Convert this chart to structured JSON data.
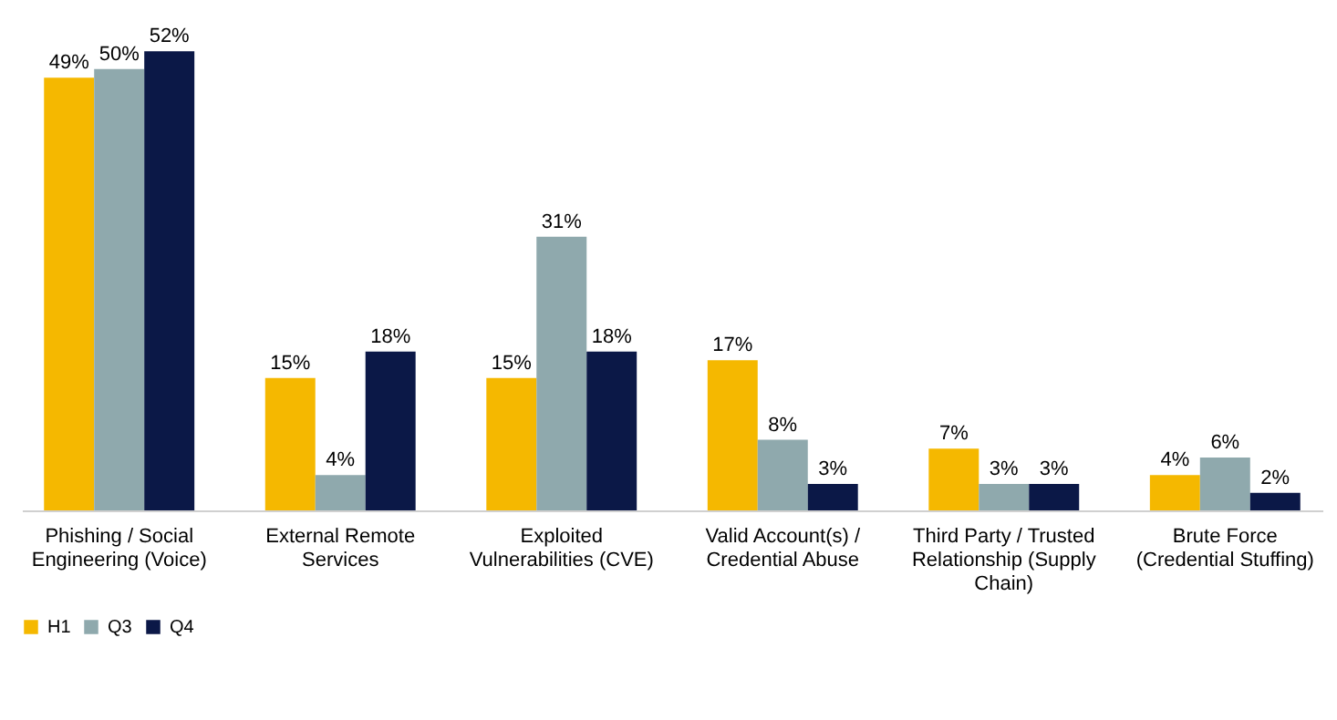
{
  "chart_data": {
    "type": "bar",
    "categories": [
      "Phishing / Social Engineering (Voice)",
      "External Remote Services",
      "Exploited Vulnerabilities (CVE)",
      "Valid Account(s) / Credential Abuse",
      "Third Party / Trusted Relationship (Supply Chain)",
      "Brute Force (Credential Stuffing)"
    ],
    "series": [
      {
        "name": "H1",
        "color": "#f5b800",
        "values": [
          49,
          15,
          15,
          17,
          7,
          4
        ],
        "value_labels": [
          "49%",
          "15%",
          "15%",
          "17%",
          "7%",
          "4%"
        ]
      },
      {
        "name": "Q3",
        "color": "#8fa9ad",
        "values": [
          50,
          4,
          31,
          8,
          3,
          6
        ],
        "value_labels": [
          "50%",
          "4%",
          "31%",
          "8%",
          "3%",
          "6%"
        ]
      },
      {
        "name": "Q4",
        "color": "#0b1847",
        "values": [
          52,
          18,
          18,
          3,
          3,
          2
        ],
        "value_labels": [
          "52%",
          "18%",
          "18%",
          "3%",
          "3%",
          "2%"
        ]
      }
    ],
    "legend": "bottom",
    "grid": false
  }
}
